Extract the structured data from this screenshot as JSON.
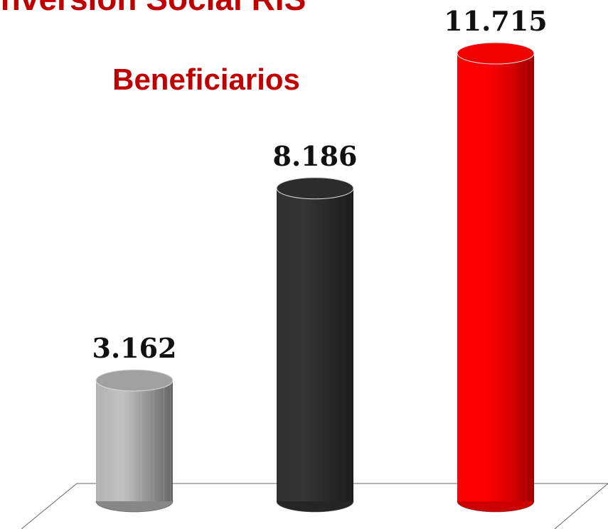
{
  "chart_data": {
    "type": "bar",
    "title": "Inversión Social RIS",
    "subtitle": "Beneficiarios",
    "categories": [
      null,
      null,
      null
    ],
    "values": [
      3162,
      8186,
      11715
    ],
    "value_labels": [
      "3.162",
      "8.186",
      "11.715"
    ],
    "colors": [
      "#a9a9a9",
      "#2e2e2e",
      "#ff0000"
    ]
  }
}
